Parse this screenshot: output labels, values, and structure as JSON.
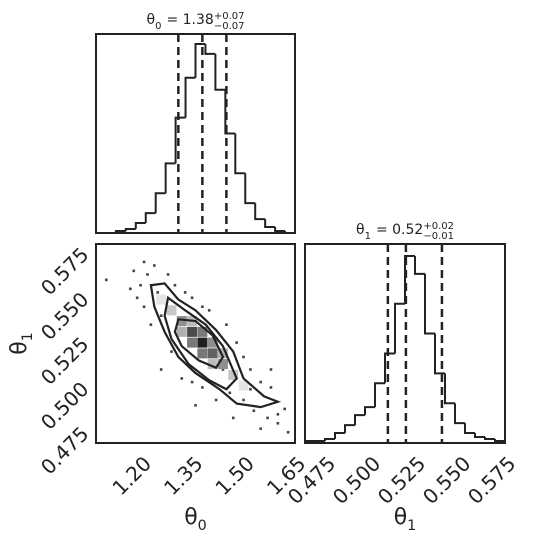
{
  "chart_data": [
    {
      "type": "histogram",
      "title": {
        "symbol": "θ",
        "index": "0",
        "value": "= 1.38",
        "upper": "+0.07",
        "lower": "−0.07"
      },
      "bins": [
        1.07,
        1.099,
        1.128,
        1.157,
        1.186,
        1.215,
        1.244,
        1.273,
        1.302,
        1.331,
        1.36,
        1.389,
        1.418,
        1.447,
        1.476,
        1.505,
        1.534,
        1.563,
        1.592,
        1.621,
        1.65
      ],
      "counts": [
        0,
        0,
        1,
        2,
        5,
        10,
        20,
        35,
        58,
        78,
        95,
        90,
        72,
        50,
        30,
        15,
        7,
        3,
        1,
        0
      ],
      "xlim": [
        1.07,
        1.65
      ],
      "ylim": [
        0,
        100
      ],
      "quantiles": [
        1.31,
        1.38,
        1.45
      ],
      "color": "#222222"
    },
    {
      "type": "density2d",
      "x": [
        1.1,
        1.18,
        1.2,
        1.19,
        1.22,
        1.24,
        1.21,
        1.25,
        1.26,
        1.28,
        1.3,
        1.23,
        1.33,
        1.35,
        1.29,
        1.32,
        1.38,
        1.4,
        1.45,
        1.48,
        1.5,
        1.52,
        1.55,
        1.58,
        1.6,
        1.62,
        1.57,
        1.53,
        1.5,
        1.46,
        1.42,
        1.38,
        1.35,
        1.55,
        1.63,
        1.27,
        1.31,
        1.44,
        1.52,
        1.47,
        1.6,
        1.21,
        1.17,
        1.26,
        1.36,
        1.58
      ],
      "y": [
        0.555,
        0.56,
        0.552,
        0.545,
        0.558,
        0.563,
        0.54,
        0.548,
        0.535,
        0.558,
        0.552,
        0.53,
        0.548,
        0.545,
        0.515,
        0.5,
        0.54,
        0.538,
        0.53,
        0.52,
        0.512,
        0.505,
        0.498,
        0.495,
        0.48,
        0.483,
        0.478,
        0.482,
        0.488,
        0.492,
        0.488,
        0.495,
        0.498,
        0.472,
        0.47,
        0.545,
        0.53,
        0.505,
        0.494,
        0.478,
        0.475,
        0.565,
        0.55,
        0.505,
        0.485,
        0.505
      ],
      "density": {
        "x": [
          1.38,
          1.35,
          1.41,
          1.32,
          1.44,
          1.35,
          1.41,
          1.38,
          1.38,
          1.29,
          1.47,
          1.32,
          1.44,
          1.35,
          1.41,
          1.26,
          1.5
        ],
        "y": [
          0.52,
          0.526,
          0.514,
          0.532,
          0.508,
          0.52,
          0.52,
          0.526,
          0.514,
          0.538,
          0.502,
          0.526,
          0.514,
          0.532,
          0.508,
          0.544,
          0.496
        ],
        "values": [
          1.0,
          0.8,
          0.7,
          0.5,
          0.5,
          0.6,
          0.5,
          0.6,
          0.6,
          0.25,
          0.25,
          0.35,
          0.35,
          0.3,
          0.3,
          0.12,
          0.12
        ],
        "bin_size": [
          0.029,
          0.0056
        ]
      },
      "contours": [
        {
          "x": [
            1.23,
            1.27,
            1.31,
            1.36,
            1.42,
            1.47,
            1.5,
            1.56,
            1.6,
            1.55,
            1.48,
            1.43,
            1.36,
            1.31,
            1.27,
            1.24
          ],
          "y": [
            0.552,
            0.553,
            0.544,
            0.538,
            0.527,
            0.515,
            0.5,
            0.49,
            0.487,
            0.484,
            0.486,
            0.494,
            0.503,
            0.512,
            0.526,
            0.54
          ]
        },
        {
          "x": [
            1.28,
            1.33,
            1.39,
            1.44,
            1.48,
            1.45,
            1.4,
            1.34,
            1.29,
            1.27
          ],
          "y": [
            0.545,
            0.538,
            0.53,
            0.518,
            0.5,
            0.494,
            0.499,
            0.508,
            0.522,
            0.535
          ]
        },
        {
          "x": [
            1.31,
            1.36,
            1.41,
            1.44,
            1.42,
            1.37,
            1.32,
            1.3
          ],
          "y": [
            0.533,
            0.532,
            0.524,
            0.512,
            0.506,
            0.51,
            0.518,
            0.526
          ]
        }
      ],
      "xlim": [
        1.07,
        1.65
      ],
      "ylim": [
        0.464,
        0.575
      ],
      "xticks": [
        {
          "value": 1.2,
          "label": "1.20"
        },
        1.35,
        {
          "value": 1.5,
          "label": "1.50"
        },
        1.65
      ],
      "yticks": [
        0.475,
        {
          "value": 0.5,
          "label": "0.500"
        },
        0.525,
        {
          "value": 0.55,
          "label": "0.550"
        },
        0.575
      ],
      "xlabel": {
        "symbol": "θ",
        "index": "0"
      },
      "ylabel": {
        "symbol": "θ",
        "index": "1"
      },
      "color": "#222222"
    },
    {
      "type": "histogram",
      "title": {
        "symbol": "θ",
        "index": "1",
        "value": "= 0.52",
        "upper": "+0.02",
        "lower": "−0.01"
      },
      "bins": [
        0.464,
        0.46955,
        0.4751,
        0.48065,
        0.4862,
        0.49175,
        0.4973,
        0.50285,
        0.5084,
        0.51395,
        0.5195,
        0.52505,
        0.5306,
        0.53615,
        0.5417,
        0.54725,
        0.5528,
        0.55835,
        0.5639,
        0.56945,
        0.575
      ],
      "counts": [
        1,
        1,
        2,
        5,
        9,
        14,
        18,
        30,
        45,
        70,
        94,
        85,
        55,
        35,
        20,
        10,
        5,
        3,
        2,
        1
      ],
      "xlim": [
        0.464,
        0.575
      ],
      "ylim": [
        0,
        100
      ],
      "xticks": [
        0.475,
        {
          "value": 0.5,
          "label": "0.500"
        },
        0.525,
        {
          "value": 0.55,
          "label": "0.550"
        },
        0.575
      ],
      "xlabel": {
        "symbol": "θ",
        "index": "1"
      },
      "quantiles": [
        0.51,
        0.52,
        0.54
      ],
      "color": "#222222"
    }
  ]
}
